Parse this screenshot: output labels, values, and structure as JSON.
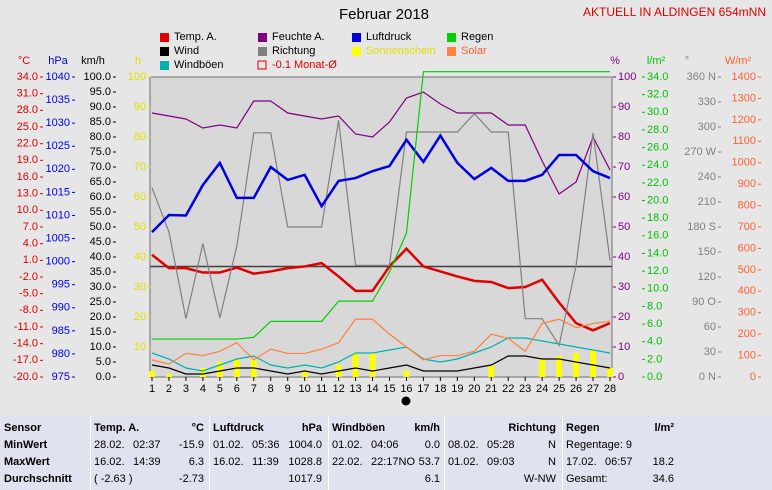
{
  "chart_data": {
    "type": "line",
    "title": "Februar 2018",
    "subtitle": "AKTUELL IN ALDINGEN 654mNN",
    "categories": [
      "1",
      "2",
      "3",
      "4",
      "5",
      "6",
      "7",
      "8",
      "9",
      "10",
      "11",
      "12",
      "13",
      "14",
      "15",
      "16",
      "17",
      "18",
      "19",
      "20",
      "21",
      "22",
      "23",
      "24",
      "25",
      "26",
      "27",
      "28"
    ],
    "axes": {
      "temp": {
        "label": "°C",
        "color": "#e00000",
        "lim": [
          -20,
          34
        ],
        "ticks": [
          {
            "value": 34,
            "label": "34.0"
          },
          {
            "value": 31,
            "label": "31.0"
          },
          {
            "value": 28,
            "label": "28.0"
          },
          {
            "value": 25,
            "label": "25.0"
          },
          {
            "value": 22,
            "label": "22.0"
          },
          {
            "value": 19,
            "label": "19.0"
          },
          {
            "value": 16,
            "label": "16.0"
          },
          {
            "value": 13,
            "label": "13.0"
          },
          {
            "value": 10,
            "label": "10.0"
          },
          {
            "value": 7,
            "label": "7.0"
          },
          {
            "value": 4,
            "label": "4.0"
          },
          {
            "value": 1,
            "label": "1.0"
          },
          {
            "value": -2,
            "label": "-2.0"
          },
          {
            "value": -5,
            "label": "-5.0"
          },
          {
            "value": -8,
            "label": "-8.0"
          },
          {
            "value": -11,
            "label": "-11.0"
          },
          {
            "value": -14,
            "label": "-14.0"
          },
          {
            "value": -17,
            "label": "-17.0"
          },
          {
            "value": -20,
            "label": "-20.0"
          }
        ]
      },
      "hpa": {
        "label": "hPa",
        "color": "#0000e0",
        "lim": [
          975,
          1040
        ],
        "ticks": [
          1040,
          1035,
          1030,
          1025,
          1020,
          1015,
          1010,
          1005,
          1000,
          995,
          990,
          985,
          980,
          975
        ]
      },
      "kmh": {
        "label": "km/h",
        "color": "#000000",
        "lim": [
          0,
          100
        ],
        "ticks": [
          {
            "value": 100,
            "label": "100.0"
          },
          {
            "value": 95,
            "label": "95.0"
          },
          {
            "value": 90,
            "label": "90.0"
          },
          {
            "value": 85,
            "label": "85.0"
          },
          {
            "value": 80,
            "label": "80.0"
          },
          {
            "value": 75,
            "label": "75.0"
          },
          {
            "value": 70,
            "label": "70.0"
          },
          {
            "value": 65,
            "label": "65.0"
          },
          {
            "value": 60,
            "label": "60.0"
          },
          {
            "value": 55,
            "label": "55.0"
          },
          {
            "value": 50,
            "label": "50.0"
          },
          {
            "value": 45,
            "label": "45.0"
          },
          {
            "value": 40,
            "label": "40.0"
          },
          {
            "value": 35,
            "label": "35.0"
          },
          {
            "value": 30,
            "label": "30.0"
          },
          {
            "value": 25,
            "label": "25.0"
          },
          {
            "value": 20,
            "label": "20.0"
          },
          {
            "value": 15,
            "label": "15.0"
          },
          {
            "value": 10,
            "label": "10.0"
          },
          {
            "value": 5,
            "label": "5.0"
          },
          {
            "value": 0,
            "label": "0.0"
          }
        ]
      },
      "h": {
        "label": "h",
        "color": "#e0e000",
        "lim": [
          0,
          100
        ],
        "ticks": [
          100,
          90,
          80,
          70,
          60,
          50,
          40,
          30,
          20,
          10
        ]
      },
      "pct": {
        "label": "%",
        "color": "#800080",
        "lim": [
          0,
          100
        ],
        "ticks": [
          100,
          90,
          80,
          70,
          60,
          50,
          40,
          30,
          20,
          10,
          0
        ]
      },
      "rain": {
        "label": "l/m²",
        "color": "#00c000",
        "lim": [
          0,
          34
        ],
        "ticks": [
          {
            "value": 34,
            "label": "34.0"
          },
          {
            "value": 32,
            "label": "32.0"
          },
          {
            "value": 30,
            "label": "30.0"
          },
          {
            "value": 28,
            "label": "28.0"
          },
          {
            "value": 26,
            "label": "26.0"
          },
          {
            "value": 24,
            "label": "24.0"
          },
          {
            "value": 22,
            "label": "22.0"
          },
          {
            "value": 20,
            "label": "20.0"
          },
          {
            "value": 18,
            "label": "18.0"
          },
          {
            "value": 16,
            "label": "16.0"
          },
          {
            "value": 14,
            "label": "14.0"
          },
          {
            "value": 12,
            "label": "12.0"
          },
          {
            "value": 10,
            "label": "10.0"
          },
          {
            "value": 8,
            "label": "8.0"
          },
          {
            "value": 6,
            "label": "6.0"
          },
          {
            "value": 4,
            "label": "4.0"
          },
          {
            "value": 2,
            "label": "2.0"
          },
          {
            "value": 0,
            "label": "0.0"
          }
        ]
      },
      "dir": {
        "label": "°",
        "color": "#808080",
        "lim": [
          0,
          360
        ],
        "ticks": [
          {
            "value": 360,
            "label": "360 N"
          },
          330,
          300,
          {
            "value": 270,
            "label": "270 W"
          },
          240,
          210,
          {
            "value": 180,
            "label": "180 S"
          },
          150,
          120,
          {
            "value": 90,
            "label": "90 O"
          },
          60,
          30,
          {
            "value": 0,
            "label": "0 N"
          }
        ]
      },
      "solar": {
        "label": "W/m²",
        "color": "#ff6030",
        "lim": [
          0,
          1400
        ],
        "ticks": [
          1400,
          1300,
          1200,
          1100,
          1000,
          900,
          800,
          700,
          600,
          500,
          400,
          300,
          200,
          100,
          0
        ]
      }
    },
    "series": [
      {
        "name": "Temp. A.",
        "color": "#e00000",
        "axis": "temp",
        "kind": "line",
        "values": [
          2.0,
          -0.4,
          -0.4,
          -1.2,
          -1.2,
          -0.3,
          -1.4,
          -1.0,
          -0.4,
          -0.1,
          0.5,
          -1.9,
          -4.5,
          -4.5,
          -0.1,
          3.1,
          -0.1,
          -1.0,
          -1.9,
          -2.7,
          -2.9,
          -4.0,
          -3.8,
          -2.5,
          -6.6,
          -10.3,
          -11.6,
          -10.3
        ]
      },
      {
        "name": "Wind",
        "color": "#000000",
        "axis": "kmh",
        "kind": "line",
        "values": [
          4,
          3,
          1,
          1,
          2,
          3,
          3,
          2,
          1,
          2,
          1,
          2,
          3,
          2,
          3,
          4,
          2,
          2,
          2,
          3,
          4,
          7,
          7,
          6,
          6,
          5,
          4,
          3
        ]
      },
      {
        "name": "Windböen",
        "color": "#00b0b0",
        "axis": "kmh",
        "kind": "line",
        "values": [
          8,
          6,
          3,
          2,
          4,
          6,
          7,
          4,
          3,
          4,
          3,
          5,
          8,
          8,
          9,
          10,
          6,
          5,
          6,
          8,
          10,
          13,
          13,
          12,
          11,
          10,
          9,
          8
        ]
      },
      {
        "name": "Feuchte A.",
        "color": "#800080",
        "axis": "pct",
        "kind": "line",
        "values": [
          88,
          87,
          86,
          83,
          84,
          83,
          92,
          92,
          88,
          87,
          86,
          87,
          81,
          80,
          85,
          93,
          95,
          91,
          88,
          88,
          88,
          84,
          84,
          72,
          61,
          65,
          80,
          69
        ]
      },
      {
        "name": "Richtung",
        "color": "#808080",
        "axis": "dir",
        "kind": "line",
        "values": [
          227,
          174,
          70,
          160,
          71,
          157,
          293,
          293,
          180,
          180,
          180,
          308,
          134,
          134,
          134,
          294,
          294,
          294,
          294,
          316,
          294,
          294,
          70,
          70,
          38,
          134,
          293,
          140
        ]
      },
      {
        "name": "Luftdruck",
        "color": "#0000e0",
        "axis": "hpa",
        "kind": "line",
        "values": [
          1006.4,
          1010.1,
          1010.0,
          1016.6,
          1021.4,
          1013.8,
          1013.8,
          1020.5,
          1017.7,
          1018.8,
          1012.0,
          1017.5,
          1018.1,
          1019.6,
          1020.7,
          1026.4,
          1021.6,
          1027.3,
          1021.4,
          1017.9,
          1020.3,
          1017.5,
          1017.5,
          1018.8,
          1023.1,
          1023.1,
          1019.6,
          1018.1
        ]
      },
      {
        "name": "Sonnenschein",
        "color": "#ffff00",
        "axis": "h",
        "kind": "bar",
        "values": [
          2,
          1,
          0,
          3,
          5,
          6,
          6,
          0,
          0,
          2,
          0,
          4,
          8,
          8,
          0,
          2,
          0,
          0,
          0,
          0,
          4,
          0,
          0,
          6,
          7,
          8,
          9,
          3
        ]
      },
      {
        "name": "Regen",
        "color": "#00d000",
        "axis": "rain",
        "kind": "line",
        "values": [
          4.3,
          4.3,
          4.3,
          4.3,
          4.3,
          4.3,
          4.5,
          6.3,
          6.3,
          6.3,
          6.3,
          8.6,
          8.6,
          8.6,
          11.9,
          16.3,
          34.6,
          34.6,
          34.6,
          34.6,
          34.6,
          34.6,
          34.6,
          34.6,
          34.6,
          34.6,
          34.6,
          34.6
        ]
      },
      {
        "name": "Solar",
        "color": "#ff8040",
        "axis": "solar",
        "kind": "line",
        "values": [
          80,
          60,
          110,
          100,
          120,
          160,
          80,
          130,
          110,
          110,
          130,
          160,
          270,
          270,
          200,
          140,
          80,
          100,
          100,
          120,
          200,
          180,
          120,
          250,
          270,
          230,
          250,
          260
        ]
      }
    ],
    "reference_line": {
      "name": "-0.1 Monat-Ø",
      "value": -0.1,
      "axis": "temp",
      "color": "#404040"
    }
  },
  "table": {
    "headers": [
      [
        "Sensor"
      ],
      [
        "Temp. A.",
        "°C"
      ],
      [
        "Luftdruck",
        "hPa"
      ],
      [
        "Windböen",
        "km/h"
      ],
      [
        "Richtung"
      ],
      [
        "Regen",
        "l/m²"
      ]
    ],
    "rows": [
      [
        [
          "MinWert"
        ],
        [
          "28.02.",
          "02:37",
          "-15.9"
        ],
        [
          "01.02.",
          "05:36",
          "1004.0"
        ],
        [
          "01.02.",
          "04:06",
          "0.0"
        ],
        [
          "08.02.",
          "05:28",
          "N"
        ],
        [
          "Regentage: 9"
        ]
      ],
      [
        [
          "MaxWert"
        ],
        [
          "16.02.",
          "14:39",
          "6.3"
        ],
        [
          "16.02.",
          "11:39",
          "1028.8"
        ],
        [
          "22.02.",
          "22:17NO",
          "53.7"
        ],
        [
          "01.02.",
          "09:03",
          "N"
        ],
        [
          "17.02.",
          "06:57",
          "18.2"
        ]
      ],
      [
        [
          "Durchschnitt"
        ],
        [
          "( -2.63 )",
          "-2.73"
        ],
        [
          "1017.9"
        ],
        [
          "6.1"
        ],
        [
          "W-NW"
        ],
        [
          "Gesamt:",
          "34.6"
        ]
      ]
    ]
  }
}
